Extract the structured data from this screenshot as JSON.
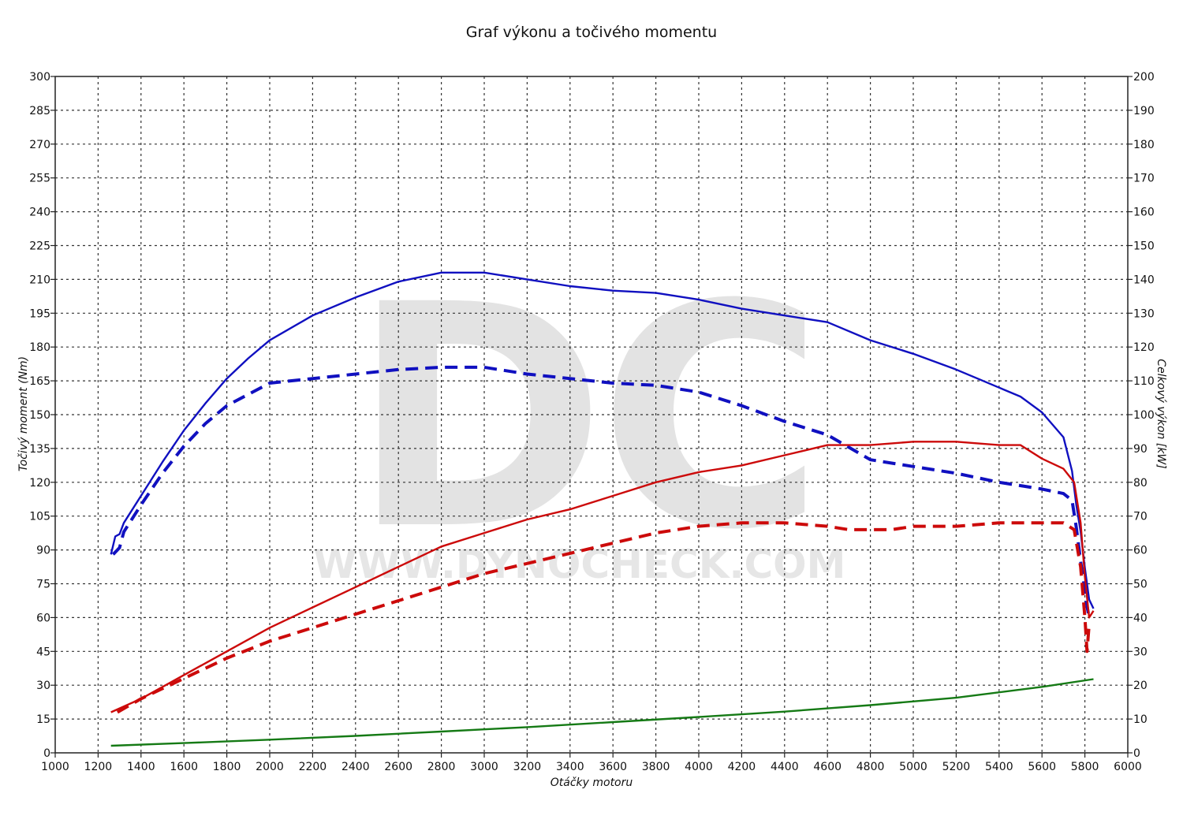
{
  "chart_data": {
    "type": "line",
    "title": "Graf výkonu a točivého momentu",
    "xlabel": "Otáčky motoru",
    "ylabel_left": "Točivý moment (Nm)",
    "ylabel_right": "Celkový výkon [kW]",
    "watermark": "DC",
    "watermark_text": "WWW.DYNOCHECK.COM",
    "xlim": [
      1000,
      6000
    ],
    "ylim_left": [
      0,
      300
    ],
    "ylim_right": [
      0,
      200
    ],
    "x_ticks": [
      1000,
      1200,
      1400,
      1600,
      1800,
      2000,
      2200,
      2400,
      2600,
      2800,
      3000,
      3200,
      3400,
      3600,
      3800,
      4000,
      4200,
      4400,
      4600,
      4800,
      5000,
      5200,
      5400,
      5600,
      5800,
      6000
    ],
    "y_left_ticks": [
      0,
      15,
      30,
      45,
      60,
      75,
      90,
      105,
      120,
      135,
      150,
      165,
      180,
      195,
      210,
      225,
      240,
      255,
      270,
      285,
      300
    ],
    "y_right_ticks": [
      0,
      10,
      20,
      30,
      40,
      50,
      60,
      70,
      80,
      90,
      100,
      110,
      120,
      130,
      140,
      150,
      160,
      170,
      180,
      190,
      200
    ],
    "grid": true,
    "series": [
      {
        "axis": "left",
        "color": "#1010c0",
        "style": "solid",
        "x": [
          1260,
          1280,
          1300,
          1320,
          1400,
          1500,
          1600,
          1700,
          1800,
          1900,
          2000,
          2200,
          2400,
          2600,
          2800,
          3000,
          3200,
          3400,
          3600,
          3800,
          4000,
          4200,
          4400,
          4600,
          4800,
          5000,
          5200,
          5400,
          5500,
          5600,
          5700,
          5740,
          5760,
          5780,
          5800,
          5820,
          5840
        ],
        "values": [
          88,
          96,
          97,
          102,
          114,
          129,
          143,
          155,
          166,
          175,
          183,
          194,
          202,
          209,
          213,
          213,
          210,
          207,
          205,
          204,
          201,
          197,
          194,
          191,
          183,
          177,
          170,
          162,
          158,
          151,
          140,
          125,
          110,
          98,
          82,
          68,
          64
        ]
      },
      {
        "axis": "left",
        "color": "#1010c0",
        "style": "dashed",
        "x": [
          1270,
          1290,
          1300,
          1320,
          1400,
          1500,
          1600,
          1700,
          1800,
          1900,
          2000,
          2200,
          2400,
          2600,
          2800,
          3000,
          3200,
          3400,
          3600,
          3800,
          4000,
          4200,
          4400,
          4600,
          4800,
          5000,
          5200,
          5400,
          5600,
          5700,
          5740,
          5760,
          5780,
          5800,
          5810,
          5820
        ],
        "values": [
          88,
          90,
          91,
          98,
          110,
          124,
          136,
          146,
          154,
          159,
          164,
          166,
          168,
          170,
          171,
          171,
          168,
          166,
          164,
          163,
          160,
          154,
          147,
          141,
          130,
          127,
          124,
          120,
          117,
          115,
          112,
          100,
          85,
          72,
          65,
          60
        ]
      },
      {
        "axis": "right",
        "color": "#cc0a0a",
        "style": "solid",
        "x": [
          1260,
          1400,
          1600,
          1800,
          2000,
          2200,
          2400,
          2600,
          2800,
          3000,
          3200,
          3400,
          3600,
          3800,
          4000,
          4200,
          4400,
          4600,
          4800,
          5000,
          5200,
          5400,
          5500,
          5600,
          5700,
          5750,
          5780,
          5800,
          5820,
          5840
        ],
        "values": [
          12,
          16,
          23,
          30,
          37,
          43,
          49,
          55,
          61,
          65,
          69,
          72,
          76,
          80,
          83,
          85,
          88,
          91,
          91,
          92,
          92,
          91,
          91,
          87,
          84,
          80,
          68,
          52,
          40,
          42
        ]
      },
      {
        "axis": "right",
        "color": "#cc0a0a",
        "style": "dashed",
        "x": [
          1290,
          1400,
          1600,
          1800,
          2000,
          2200,
          2400,
          2600,
          2800,
          3000,
          3200,
          3400,
          3600,
          3800,
          4000,
          4200,
          4400,
          4600,
          4700,
          4800,
          4900,
          5000,
          5200,
          5400,
          5600,
          5700,
          5750,
          5780,
          5800,
          5810,
          5820
        ],
        "values": [
          12,
          16,
          22,
          28,
          33,
          37,
          41,
          45,
          49,
          53,
          56,
          59,
          62,
          65,
          67,
          68,
          68,
          67,
          66,
          66,
          66,
          67,
          67,
          68,
          68,
          68,
          66,
          55,
          40,
          30,
          38
        ]
      },
      {
        "axis": "right",
        "color": "#157a15",
        "style": "solid",
        "x": [
          1260,
          1600,
          2000,
          2400,
          2800,
          3200,
          3600,
          4000,
          4400,
          4800,
          5200,
          5600,
          5840
        ],
        "values": [
          2.1,
          2.9,
          3.9,
          5.0,
          6.3,
          7.6,
          9.1,
          10.6,
          12.2,
          14.1,
          16.3,
          19.5,
          21.8
        ]
      }
    ]
  }
}
